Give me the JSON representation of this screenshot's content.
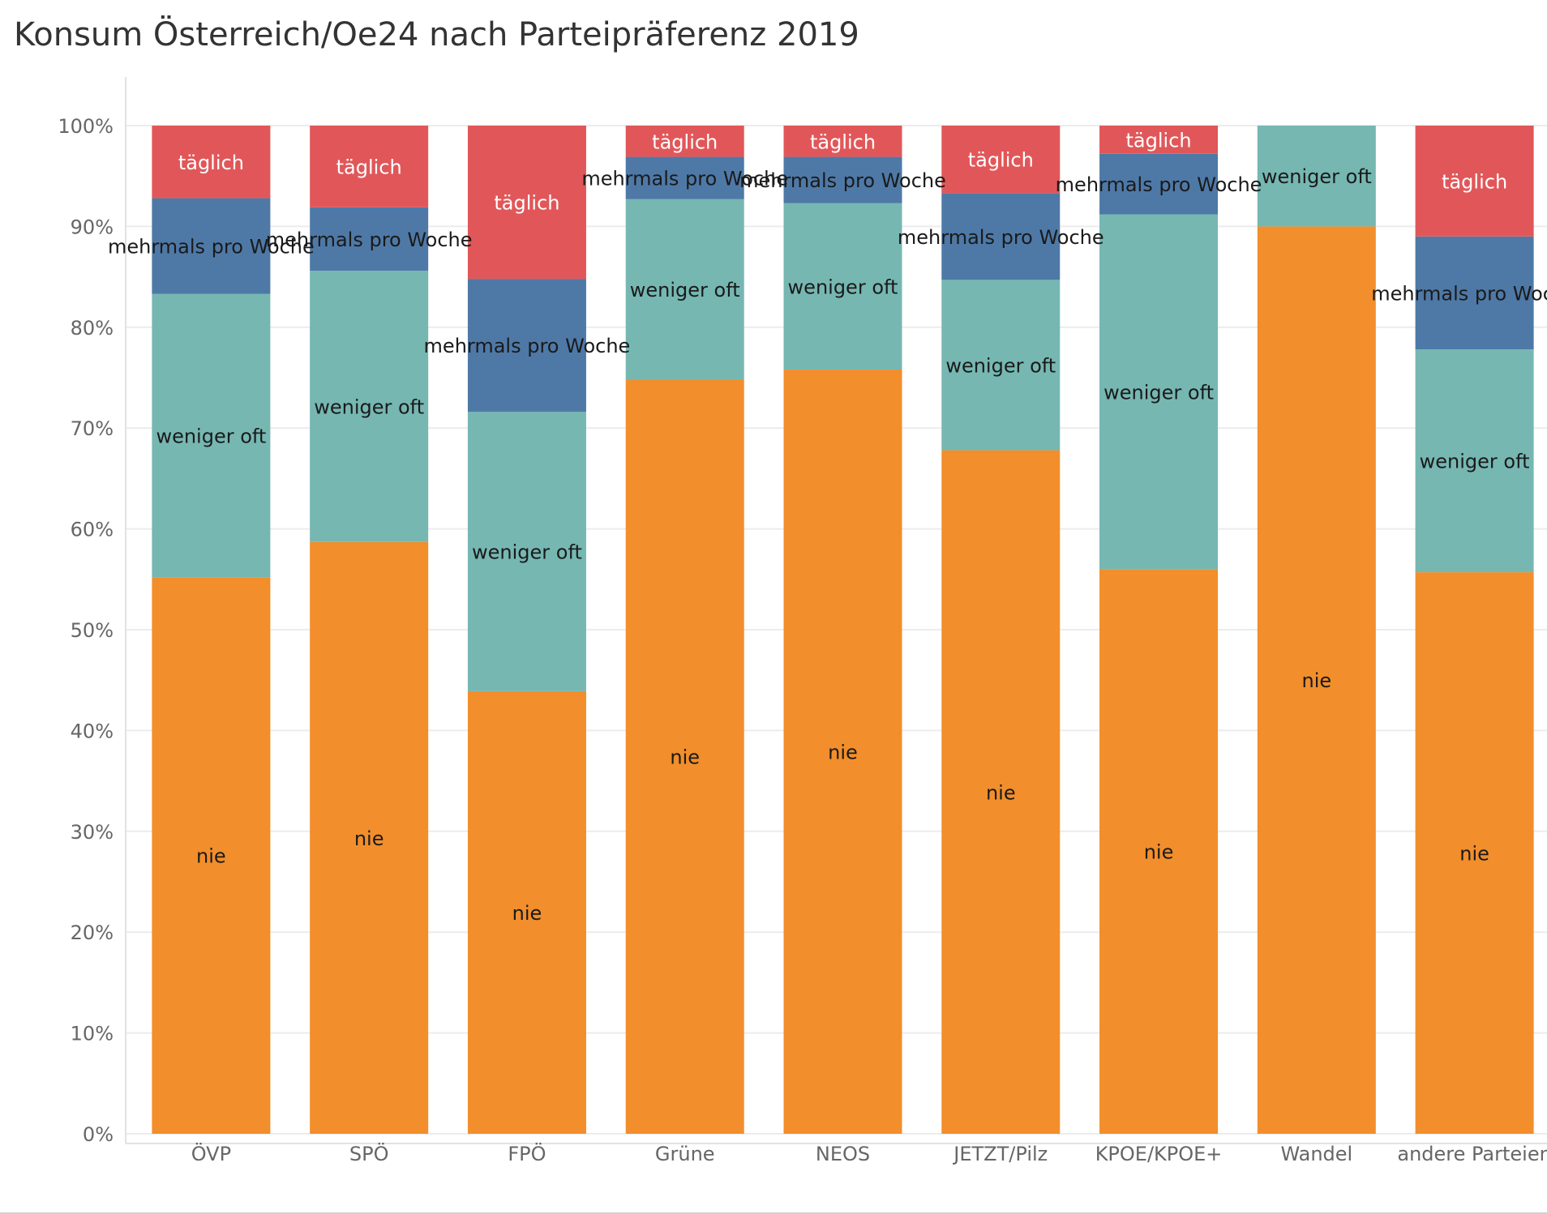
{
  "chart_data": {
    "type": "bar",
    "stacked": true,
    "normalized": true,
    "title": "Konsum Österreich/Oe24 nach Parteipräferenz 2019",
    "xlabel": "",
    "ylabel": "",
    "ylim": [
      0,
      100
    ],
    "y_ticks": [
      "0%",
      "10%",
      "20%",
      "30%",
      "40%",
      "50%",
      "60%",
      "70%",
      "80%",
      "90%",
      "100%"
    ],
    "grid": true,
    "legend": "none",
    "categories": [
      "ÖVP",
      "SPÖ",
      "FPÖ",
      "Grüne",
      "NEOS",
      "JETZT/Pilz",
      "KPOE/KPOE+",
      "Wandel",
      "andere Parteien"
    ],
    "series": [
      {
        "name": "nie",
        "color": "#f28e2b",
        "text_color": "#1a1a1a",
        "values": [
          55.2,
          58.7,
          43.9,
          74.8,
          75.8,
          67.8,
          56.0,
          90.0,
          55.7
        ]
      },
      {
        "name": "weniger oft",
        "color": "#76b7b2",
        "text_color": "#1a1a1a",
        "values": [
          28.1,
          26.9,
          27.7,
          17.9,
          16.5,
          16.9,
          35.2,
          10.0,
          22.1
        ]
      },
      {
        "name": "mehrmals pro Woche",
        "color": "#4e79a7",
        "text_color": "#1a1a1a",
        "values": [
          9.5,
          6.3,
          13.2,
          4.2,
          4.6,
          8.6,
          6.0,
          0,
          11.2
        ]
      },
      {
        "name": "täglich",
        "color": "#e15759",
        "text_color": "#ffffff",
        "values": [
          7.2,
          8.1,
          15.2,
          3.1,
          3.1,
          6.7,
          2.8,
          0,
          11.0
        ]
      }
    ]
  }
}
